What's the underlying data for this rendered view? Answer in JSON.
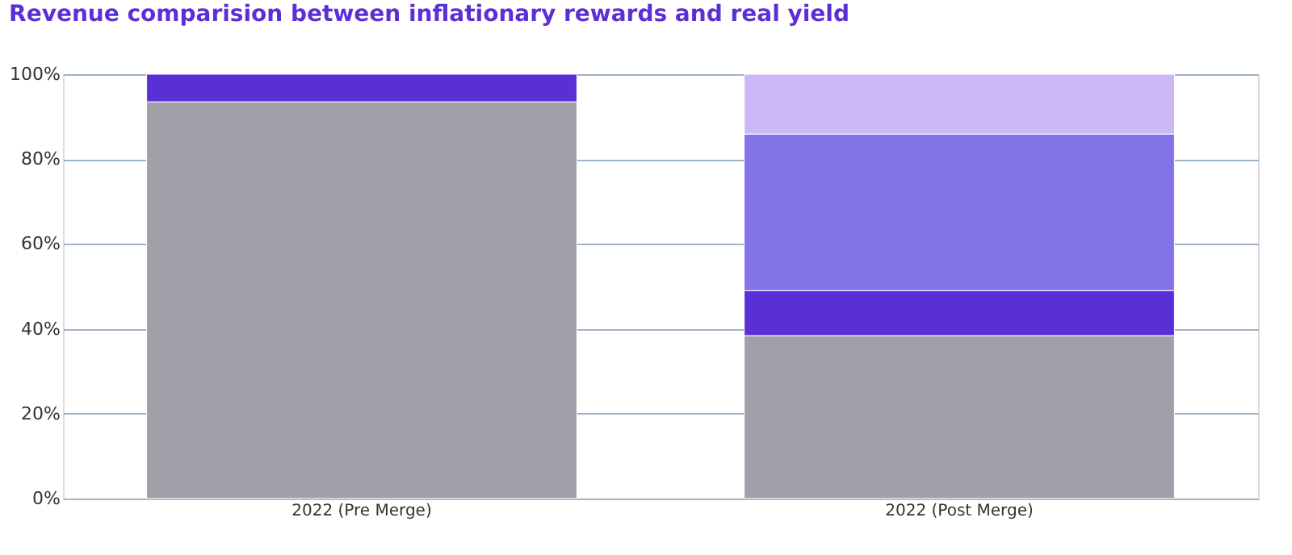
{
  "chart_data": {
    "type": "bar",
    "stacked": true,
    "title": "Revenue comparision between inflationary rewards and real yield",
    "categories": [
      "2022 (Pre Merge)",
      "2022 (Post Merge)"
    ],
    "series": [
      {
        "color": "#a0a0a8",
        "values": [
          93.5,
          38.4
        ]
      },
      {
        "color": "#5b2fd6",
        "values": [
          6.5,
          10.6
        ]
      },
      {
        "color": "#8373e8",
        "values": [
          null,
          36.9
        ]
      },
      {
        "color": "#cbb8f6",
        "values": [
          null,
          14.1
        ]
      }
    ],
    "ylim": [
      0,
      100
    ],
    "yticks": [
      {
        "value": 0,
        "label": "0%"
      },
      {
        "value": 20,
        "label": "20%"
      },
      {
        "value": 40,
        "label": "40%"
      },
      {
        "value": 60,
        "label": "60%"
      },
      {
        "value": 80,
        "label": "80%"
      },
      {
        "value": 100,
        "label": "100%"
      }
    ],
    "grid": "y",
    "legend": false
  }
}
